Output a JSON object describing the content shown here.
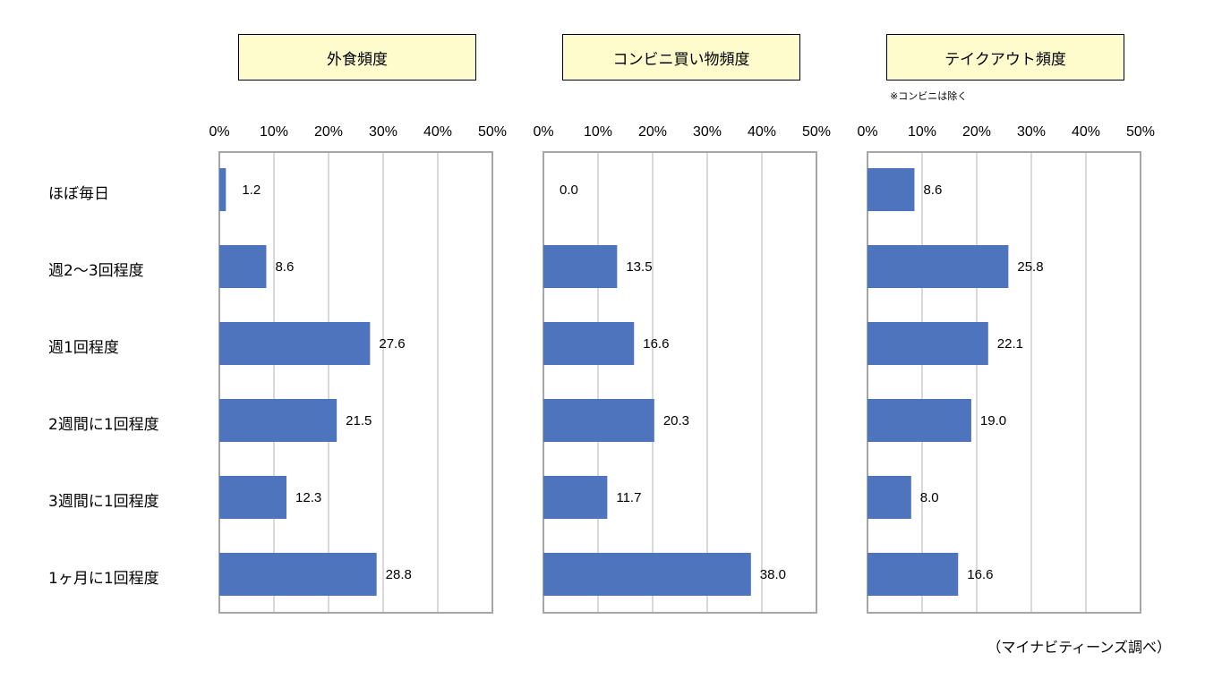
{
  "chart_data": [
    {
      "type": "bar",
      "orientation": "horizontal",
      "title": "外食頻度",
      "categories": [
        "ほぼ毎日",
        "週2～3回程度",
        "週1回程度",
        "2週間に1回程度",
        "3週間に1回程度",
        "1ヶ月に1回程度"
      ],
      "values": [
        1.2,
        8.6,
        27.6,
        21.5,
        12.3,
        28.8
      ],
      "value_labels": [
        "1.2",
        "8.6",
        "27.6",
        "21.5",
        "12.3",
        "28.8"
      ],
      "xlim": [
        0,
        50
      ],
      "tick_labels": [
        "0%",
        "10%",
        "20%",
        "30%",
        "40%",
        "50%"
      ],
      "grid": true,
      "color": "#4f74be"
    },
    {
      "type": "bar",
      "orientation": "horizontal",
      "title": "コンビニ買い物頻度",
      "categories": [
        "ほぼ毎日",
        "週2～3回程度",
        "週1回程度",
        "2週間に1回程度",
        "3週間に1回程度",
        "1ヶ月に1回程度"
      ],
      "values": [
        0.0,
        13.5,
        16.6,
        20.3,
        11.7,
        38.0
      ],
      "value_labels": [
        "0.0",
        "13.5",
        "16.6",
        "20.3",
        "11.7",
        "38.0"
      ],
      "xlim": [
        0,
        50
      ],
      "tick_labels": [
        "0%",
        "10%",
        "20%",
        "30%",
        "40%",
        "50%"
      ],
      "grid": true,
      "color": "#4f74be"
    },
    {
      "type": "bar",
      "orientation": "horizontal",
      "title": "テイクアウト頻度",
      "note": "※コンビニは除く",
      "categories": [
        "ほぼ毎日",
        "週2～3回程度",
        "週1回程度",
        "2週間に1回程度",
        "3週間に1回程度",
        "1ヶ月に1回程度"
      ],
      "values": [
        8.6,
        25.8,
        22.1,
        19.0,
        8.0,
        16.6
      ],
      "value_labels": [
        "8.6",
        "25.8",
        "22.1",
        "19.0",
        "8.0",
        "16.6"
      ],
      "xlim": [
        0,
        50
      ],
      "tick_labels": [
        "0%",
        "10%",
        "20%",
        "30%",
        "40%",
        "50%"
      ],
      "grid": true,
      "color": "#4f74be"
    }
  ],
  "categories": [
    "ほぼ毎日",
    "週2～3回程度",
    "週1回程度",
    "2週間に1回程度",
    "3週間に1回程度",
    "1ヶ月に1回程度"
  ],
  "panel_titles": [
    "外食頻度",
    "コンビニ買い物頻度",
    "テイクアウト頻度"
  ],
  "note": "※コンビニは除く",
  "source": "（マイナビティーンズ調べ）"
}
